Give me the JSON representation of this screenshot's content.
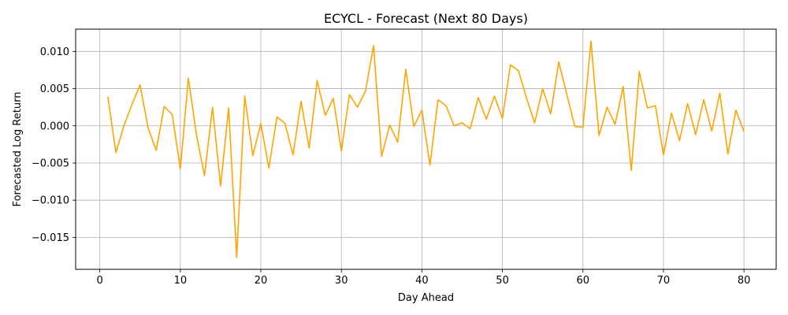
{
  "chart_data": {
    "type": "line",
    "title": "ECYCL - Forecast (Next 80 Days)",
    "xlabel": "Day Ahead",
    "ylabel": "Forecasted Log Return",
    "xlim": [
      -3,
      84
    ],
    "ylim": [
      -0.0193,
      0.013
    ],
    "x_ticks": [
      0,
      10,
      20,
      30,
      40,
      50,
      60,
      70,
      80
    ],
    "x_tick_labels": [
      "0",
      "10",
      "20",
      "30",
      "40",
      "50",
      "60",
      "70",
      "80"
    ],
    "y_ticks": [
      -0.015,
      -0.01,
      -0.005,
      0.0,
      0.005,
      0.01
    ],
    "y_tick_labels": [
      "−0.015",
      "−0.010",
      "−0.005",
      "0.000",
      "0.005",
      "0.010"
    ],
    "grid": true,
    "line_color": "#FFA500",
    "series": [
      {
        "x": [
          1,
          2,
          3,
          4,
          5,
          6,
          7,
          8,
          9,
          10,
          11,
          12,
          13,
          14,
          15,
          16,
          17,
          18,
          19,
          20,
          21,
          22,
          23,
          24,
          25,
          26,
          27,
          28,
          29,
          30,
          31,
          32,
          33,
          34,
          35,
          36,
          37,
          38,
          39,
          40,
          41,
          42,
          43,
          44,
          45,
          46,
          47,
          48,
          49,
          50,
          51,
          52,
          53,
          54,
          55,
          56,
          57,
          58,
          59,
          60,
          61,
          62,
          63,
          64,
          65,
          66,
          67,
          68,
          69,
          70,
          71,
          72,
          73,
          74,
          75,
          76,
          77,
          78,
          79,
          80
        ],
        "values": [
          0.0039,
          -0.0036,
          0.0,
          0.0029,
          0.0055,
          -0.0003,
          -0.0033,
          0.0026,
          0.0015,
          -0.0058,
          0.0064,
          -0.0012,
          -0.0067,
          0.0025,
          -0.0081,
          0.0024,
          -0.0177,
          0.004,
          -0.004,
          0.0003,
          -0.0057,
          0.0012,
          0.0003,
          -0.0039,
          0.0033,
          -0.003,
          0.0061,
          0.0014,
          0.0037,
          -0.0034,
          0.0042,
          0.0025,
          0.0047,
          0.0108,
          -0.0041,
          0.0001,
          -0.0022,
          0.0076,
          -0.0001,
          0.0021,
          -0.0053,
          0.0035,
          0.0027,
          0.0,
          0.0004,
          -0.0004,
          0.0038,
          0.0009,
          0.004,
          0.001,
          0.0082,
          0.0074,
          0.0037,
          0.0004,
          0.005,
          0.0016,
          0.0086,
          0.0042,
          -0.0001,
          -0.0002,
          0.0114,
          -0.0013,
          0.0025,
          0.0002,
          0.0053,
          -0.006,
          0.0073,
          0.0024,
          0.0027,
          -0.0039,
          0.0017,
          -0.002,
          0.003,
          -0.0012,
          0.0035,
          -0.0007,
          0.0044,
          -0.0038,
          0.0021,
          -0.0008
        ]
      }
    ]
  }
}
